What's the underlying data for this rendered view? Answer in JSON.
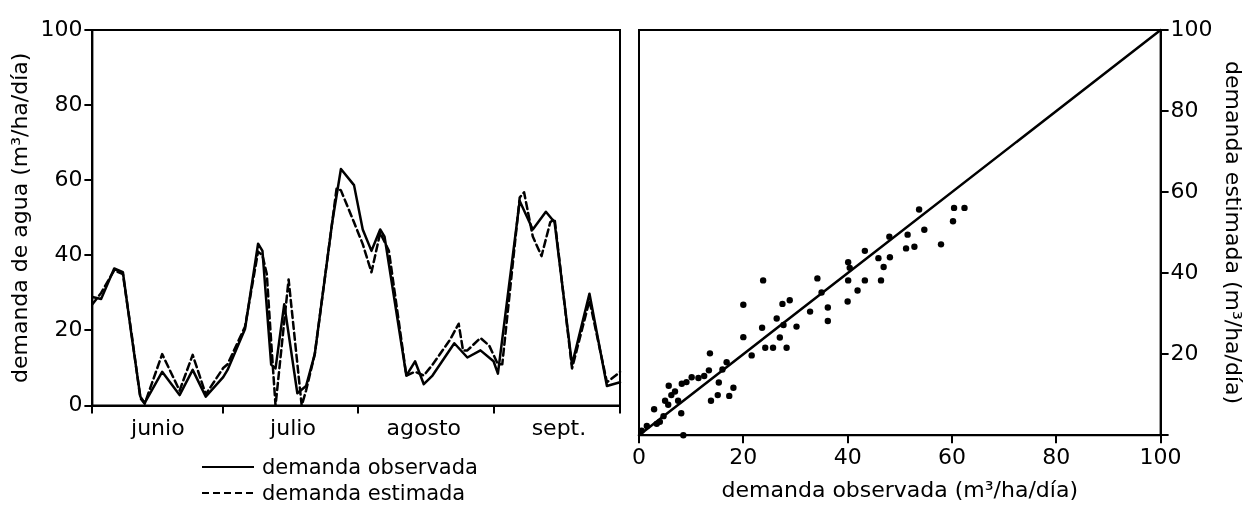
{
  "chart_data": [
    {
      "type": "line",
      "ylabel": "demanda de agua (m³/ha/día)",
      "legend": "bottom",
      "xlim": [
        "--06-01",
        "--09-30"
      ],
      "xticks": [
        {
          "value": "--06-01",
          "label": null
        },
        {
          "value": "--06-16",
          "label": "junio"
        },
        {
          "value": "--07-01",
          "label": null
        },
        {
          "value": "--07-17",
          "label": "julio"
        },
        {
          "value": "--08-01",
          "label": null
        },
        {
          "value": "--08-16",
          "label": "agosto"
        },
        {
          "value": "--09-01",
          "label": null
        },
        {
          "value": "--09-16",
          "label": "sept."
        },
        {
          "value": "--09-30",
          "label": null
        }
      ],
      "ylim": [
        0,
        100
      ],
      "yticks": [
        0,
        20,
        40,
        60,
        80,
        100
      ],
      "series": [
        {
          "name": "demanda observada",
          "color": "#000000",
          "line_style": "solid",
          "x": [
            "--06-01",
            "--06-03",
            "--06-06",
            "--06-08",
            "--06-10",
            "--06-12",
            "--06-13",
            "--06-17",
            "--06-21",
            "--06-24",
            "--06-27",
            "--07-01",
            "--07-02",
            "--07-06",
            "--07-09",
            "--07-10",
            "--07-12",
            "--07-13",
            "--07-15",
            "--07-18",
            "--07-20",
            "--07-22",
            "--07-26",
            "--07-28",
            "--07-31",
            "--08-02",
            "--08-04",
            "--08-06",
            "--08-07",
            "--08-12",
            "--08-14",
            "--08-16",
            "--08-18",
            "--08-23",
            "--08-26",
            "--08-29",
            "--09-01",
            "--09-02",
            "--09-07",
            "--09-10",
            "--09-13",
            "--09-15",
            "--09-19",
            "--09-23",
            "--09-27",
            "--09-30"
          ],
          "values": [
            28.9,
            28.4,
            36.5,
            35.5,
            18.5,
            2.4,
            0.7,
            9,
            2.8,
            9.5,
            2.4,
            7.6,
            9.5,
            20.4,
            43.1,
            41.2,
            10.9,
            9.9,
            27,
            3.3,
            5.2,
            13.7,
            48.8,
            63,
            58.7,
            46.9,
            41.2,
            46.9,
            45,
            8,
            11.8,
            5.7,
            8,
            16.6,
            12.8,
            14.7,
            11.8,
            8.5,
            54.5,
            46.9,
            51.6,
            48.8,
            10.9,
            29.8,
            5.2,
            6.2
          ]
        },
        {
          "name": "demanda estimada",
          "color": "#000000",
          "line_style": "dashed",
          "x": [
            "--06-01",
            "--06-03",
            "--06-06",
            "--06-08",
            "--06-10",
            "--06-12",
            "--06-13",
            "--06-17",
            "--06-21",
            "--06-24",
            "--06-27",
            "--07-01",
            "--07-02",
            "--07-06",
            "--07-09",
            "--07-10",
            "--07-11",
            "--07-12",
            "--07-13",
            "--07-16",
            "--07-19",
            "--07-20",
            "--07-22",
            "--07-26",
            "--07-27",
            "--07-28",
            "--07-31",
            "--08-02",
            "--08-04",
            "--08-06",
            "--08-08",
            "--08-12",
            "--08-14",
            "--08-16",
            "--08-18",
            "--08-22",
            "--08-24",
            "--08-25",
            "--08-26",
            "--08-29",
            "--08-31",
            "--09-02",
            "--09-03",
            "--09-07",
            "--09-08",
            "--09-10",
            "--09-12",
            "--09-14",
            "--09-15",
            "--09-19",
            "--09-23",
            "--09-27",
            "--09-29",
            "--09-30"
          ],
          "values": [
            27,
            30,
            36,
            35,
            19,
            2,
            0.5,
            13.7,
            4,
            13.5,
            3,
            10,
            11,
            21,
            41,
            40,
            35,
            17,
            0,
            33.6,
            0,
            4,
            13.7,
            48.8,
            57.8,
            57.3,
            48.8,
            43,
            35.5,
            46,
            41.2,
            8,
            9,
            8,
            10.9,
            17.5,
            21.8,
            14.7,
            14.7,
            18,
            16,
            11,
            11,
            55.4,
            56.8,
            45,
            39.8,
            48.8,
            49.7,
            9.9,
            28,
            6.2,
            8,
            9
          ]
        }
      ]
    },
    {
      "type": "scatter",
      "xlabel": "demanda observada (m³/ha/día)",
      "ylabel": "demanda estimada (m³/ha/día)",
      "xlim": [
        0,
        100
      ],
      "xticks": [
        0,
        20,
        40,
        60,
        80,
        100
      ],
      "ylim": [
        0,
        100
      ],
      "yticks": [
        {
          "value": 0,
          "label": null
        },
        20,
        40,
        60,
        80,
        100
      ],
      "series": [
        {
          "type": "scatter",
          "color": "#000000",
          "marker": "circle",
          "x": [
            53.7,
            60.4,
            62.4,
            60.2,
            54.7,
            57.9,
            52.8,
            51.2,
            51.5,
            48,
            43.3,
            45.9,
            46.9,
            48.1,
            40.1,
            40.4,
            40.1,
            43.3,
            41.9,
            40,
            46.4,
            34.2,
            35,
            36.2,
            36.2,
            32.8,
            30.2,
            28.9,
            27.5,
            23.8,
            27.7,
            26.4,
            27,
            28.3,
            25.7,
            24.2,
            23.6,
            20,
            20,
            21.6,
            16.8,
            18.1,
            17.3,
            15.1,
            13.8,
            15.3,
            16,
            13.6,
            13.4,
            12.5,
            11.4,
            10.1,
            8.2,
            5.7,
            6.9,
            6.2,
            5,
            8.1,
            2.9,
            4.7,
            4,
            1.5,
            0.5,
            8.5,
            9.1,
            7.5,
            5.6,
            3.4
          ],
          "values": [
            55.7,
            56.1,
            56.1,
            52.8,
            50.7,
            47.1,
            46.5,
            46.1,
            49.5,
            49,
            45.5,
            43.7,
            41.5,
            43.9,
            42.7,
            41.3,
            38.2,
            38.2,
            35.7,
            33,
            38.2,
            38.7,
            35.2,
            31.5,
            28.2,
            30.5,
            26.8,
            33.3,
            32.4,
            38.2,
            27.2,
            28.8,
            24.1,
            21.6,
            21.6,
            21.6,
            26.5,
            32.2,
            24.2,
            19.7,
            18,
            11.7,
            9.7,
            9.9,
            8.5,
            13,
            16.2,
            20.2,
            16,
            14.6,
            14.1,
            14.3,
            12.7,
            12.2,
            10.8,
            9.9,
            8.5,
            5.4,
            6.4,
            4.7,
            3.3,
            2.3,
            1.1,
            0,
            13.1,
            8.5,
            7.5,
            2.8
          ]
        },
        {
          "type": "line",
          "color": "#000000",
          "marker": "none",
          "x": [
            0,
            100
          ],
          "values": [
            0,
            100
          ]
        }
      ]
    }
  ]
}
